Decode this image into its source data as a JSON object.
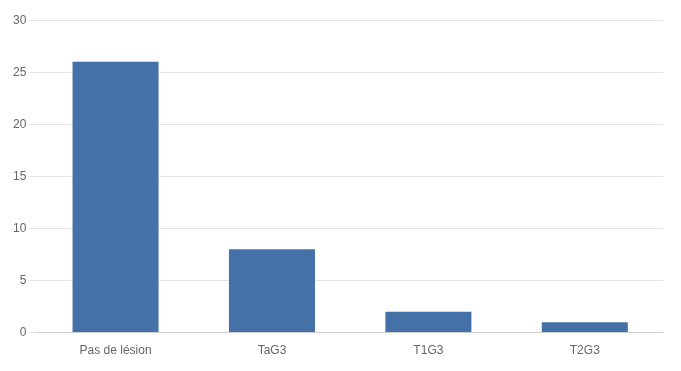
{
  "chart_data": {
    "type": "bar",
    "categories": [
      "Pas de lésion",
      "TaG3",
      "T1G3",
      "T2G3"
    ],
    "values": [
      26,
      8,
      2,
      1
    ],
    "color": "#4472a8",
    "ylim": [
      0,
      30
    ],
    "yticks": [
      0,
      5,
      10,
      15,
      20,
      25,
      30
    ],
    "grid": true
  }
}
